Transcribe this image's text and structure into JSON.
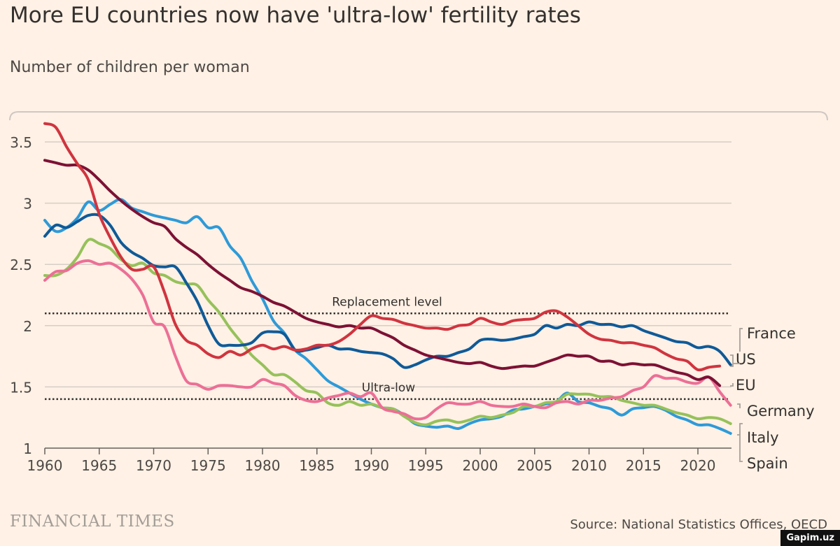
{
  "title": "More EU countries now have 'ultra-low' fertility rates",
  "subtitle": "Number of children per woman",
  "source": "Source: National Statistics Offices, OECD",
  "logo": "FINANCIAL TIMES",
  "watermark": "Gapim.uz",
  "chart_data": {
    "type": "line",
    "title": "More EU countries now have 'ultra-low' fertility rates",
    "ylabel": "Number of children per woman",
    "xlim": [
      1960,
      2023
    ],
    "ylim": [
      1,
      3.7
    ],
    "x_ticks": [
      1960,
      1965,
      1970,
      1975,
      1980,
      1985,
      1990,
      1995,
      2000,
      2005,
      2010,
      2015,
      2020
    ],
    "y_ticks": [
      1,
      1.5,
      2,
      2.5,
      3,
      3.5
    ],
    "y_tick_labels": [
      "1",
      "1.5",
      "2",
      "2.5",
      "3",
      "3.5"
    ],
    "grid": "horizontal",
    "legend": "right, direct labels",
    "reference_lines": [
      {
        "label": "Replacement level",
        "value": 2.1
      },
      {
        "label": "Ultra-low",
        "value": 1.4
      }
    ],
    "series": [
      {
        "name": "France",
        "color": "#0f5a98",
        "start": 1960,
        "values": [
          2.73,
          2.82,
          2.8,
          2.85,
          2.9,
          2.9,
          2.82,
          2.68,
          2.6,
          2.55,
          2.49,
          2.48,
          2.48,
          2.35,
          2.2,
          2.0,
          1.85,
          1.84,
          1.84,
          1.86,
          1.94,
          1.95,
          1.93,
          1.8,
          1.8,
          1.82,
          1.84,
          1.81,
          1.81,
          1.79,
          1.78,
          1.77,
          1.73,
          1.66,
          1.68,
          1.72,
          1.75,
          1.75,
          1.78,
          1.81,
          1.88,
          1.89,
          1.88,
          1.89,
          1.91,
          1.93,
          2.0,
          1.98,
          2.01,
          2.0,
          2.03,
          2.01,
          2.01,
          1.99,
          2.0,
          1.96,
          1.93,
          1.9,
          1.87,
          1.86,
          1.82,
          1.83,
          1.79,
          1.68
        ]
      },
      {
        "name": "US",
        "color": "#d0343f",
        "start": 1960,
        "values": [
          3.65,
          3.62,
          3.46,
          3.32,
          3.19,
          2.91,
          2.72,
          2.56,
          2.46,
          2.46,
          2.48,
          2.27,
          2.01,
          1.88,
          1.84,
          1.77,
          1.74,
          1.79,
          1.76,
          1.81,
          1.84,
          1.81,
          1.83,
          1.8,
          1.81,
          1.84,
          1.84,
          1.87,
          1.93,
          2.01,
          2.08,
          2.06,
          2.05,
          2.02,
          2.0,
          1.98,
          1.98,
          1.97,
          2.0,
          2.01,
          2.06,
          2.03,
          2.01,
          2.04,
          2.05,
          2.06,
          2.11,
          2.12,
          2.07,
          2.0,
          1.93,
          1.89,
          1.88,
          1.86,
          1.86,
          1.84,
          1.82,
          1.77,
          1.73,
          1.71,
          1.64,
          1.66,
          1.67
        ]
      },
      {
        "name": "EU",
        "color": "#7d1135",
        "start": 1960,
        "values": [
          3.35,
          3.33,
          3.31,
          3.31,
          3.27,
          3.19,
          3.1,
          3.02,
          2.95,
          2.89,
          2.84,
          2.81,
          2.71,
          2.64,
          2.58,
          2.5,
          2.43,
          2.37,
          2.31,
          2.28,
          2.24,
          2.19,
          2.16,
          2.11,
          2.06,
          2.03,
          2.01,
          1.99,
          2.0,
          1.98,
          1.98,
          1.94,
          1.9,
          1.84,
          1.8,
          1.76,
          1.74,
          1.72,
          1.7,
          1.69,
          1.7,
          1.67,
          1.65,
          1.66,
          1.67,
          1.67,
          1.7,
          1.73,
          1.76,
          1.75,
          1.75,
          1.71,
          1.71,
          1.68,
          1.69,
          1.68,
          1.68,
          1.65,
          1.62,
          1.6,
          1.56,
          1.58,
          1.51
        ]
      },
      {
        "name": "Germany",
        "color": "#ec6f96",
        "start": 1960,
        "values": [
          2.37,
          2.44,
          2.45,
          2.51,
          2.53,
          2.5,
          2.51,
          2.46,
          2.38,
          2.25,
          2.03,
          1.99,
          1.75,
          1.55,
          1.52,
          1.48,
          1.51,
          1.51,
          1.5,
          1.5,
          1.56,
          1.53,
          1.51,
          1.43,
          1.39,
          1.38,
          1.41,
          1.43,
          1.45,
          1.42,
          1.45,
          1.33,
          1.3,
          1.28,
          1.24,
          1.25,
          1.32,
          1.37,
          1.36,
          1.36,
          1.38,
          1.35,
          1.34,
          1.34,
          1.36,
          1.34,
          1.33,
          1.37,
          1.38,
          1.36,
          1.39,
          1.39,
          1.41,
          1.42,
          1.47,
          1.5,
          1.59,
          1.57,
          1.57,
          1.54,
          1.53,
          1.58,
          1.46,
          1.35
        ]
      },
      {
        "name": "Italy",
        "color": "#96c15a",
        "start": 1960,
        "values": [
          2.41,
          2.41,
          2.46,
          2.56,
          2.7,
          2.67,
          2.63,
          2.54,
          2.49,
          2.51,
          2.43,
          2.41,
          2.36,
          2.34,
          2.33,
          2.21,
          2.11,
          1.98,
          1.87,
          1.76,
          1.68,
          1.6,
          1.6,
          1.54,
          1.47,
          1.45,
          1.37,
          1.35,
          1.38,
          1.35,
          1.36,
          1.33,
          1.32,
          1.26,
          1.21,
          1.19,
          1.22,
          1.23,
          1.21,
          1.23,
          1.26,
          1.25,
          1.27,
          1.29,
          1.34,
          1.34,
          1.37,
          1.38,
          1.44,
          1.44,
          1.44,
          1.42,
          1.42,
          1.39,
          1.37,
          1.35,
          1.35,
          1.32,
          1.29,
          1.27,
          1.24,
          1.25,
          1.24,
          1.2
        ]
      },
      {
        "name": "Spain",
        "color": "#2e9ad8",
        "start": 1960,
        "values": [
          2.86,
          2.77,
          2.8,
          2.88,
          3.01,
          2.94,
          2.99,
          3.03,
          2.96,
          2.93,
          2.9,
          2.88,
          2.86,
          2.84,
          2.89,
          2.8,
          2.8,
          2.65,
          2.55,
          2.37,
          2.22,
          2.04,
          1.94,
          1.8,
          1.73,
          1.64,
          1.55,
          1.5,
          1.45,
          1.4,
          1.36,
          1.33,
          1.32,
          1.27,
          1.2,
          1.18,
          1.17,
          1.18,
          1.16,
          1.2,
          1.23,
          1.24,
          1.26,
          1.31,
          1.32,
          1.34,
          1.36,
          1.38,
          1.45,
          1.38,
          1.37,
          1.34,
          1.32,
          1.27,
          1.32,
          1.33,
          1.34,
          1.31,
          1.26,
          1.23,
          1.19,
          1.19,
          1.16,
          1.12
        ]
      }
    ]
  }
}
